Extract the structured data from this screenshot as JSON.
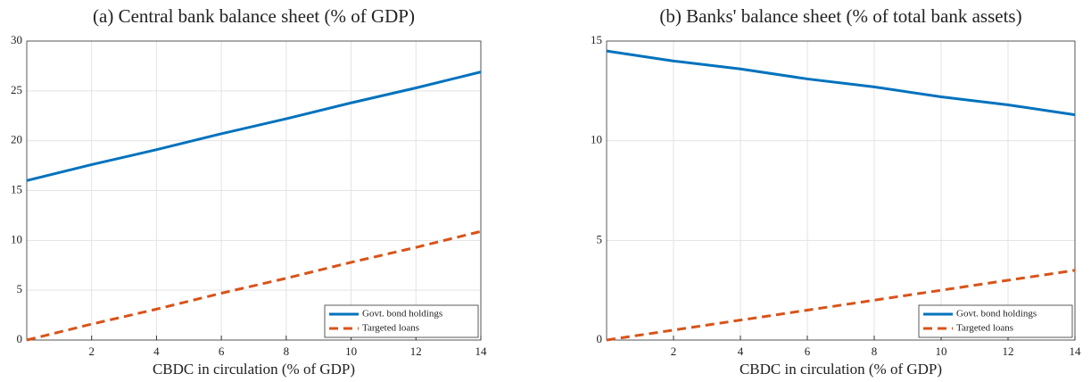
{
  "chart_data": [
    {
      "type": "line",
      "title": "(a) Central bank balance sheet (% of GDP)",
      "x_label": "CBDC in circulation (% of GDP)",
      "x": [
        0,
        2,
        4,
        6,
        8,
        10,
        12,
        14
      ],
      "series": [
        {
          "name": "Govt. bond holdings",
          "color": "#0072bd",
          "dash": false,
          "values": [
            16,
            17.6,
            19.1,
            20.7,
            22.2,
            23.8,
            25.3,
            26.9
          ]
        },
        {
          "name": "Targeted loans",
          "color": "#d95319",
          "dash": true,
          "values": [
            0,
            1.6,
            3.1,
            4.7,
            6.2,
            7.8,
            9.3,
            10.9
          ]
        }
      ],
      "xlim": [
        0,
        14
      ],
      "xticks": [
        2,
        4,
        6,
        8,
        10,
        12,
        14
      ],
      "ylim": [
        0,
        30
      ],
      "yticks": [
        0,
        5,
        10,
        15,
        20,
        25,
        30
      ],
      "grid": true,
      "legend": "lower right"
    },
    {
      "type": "line",
      "title": "(b) Banks' balance sheet (% of total bank assets)",
      "x_label": "CBDC in circulation (% of GDP)",
      "x": [
        0,
        2,
        4,
        6,
        8,
        10,
        12,
        14
      ],
      "series": [
        {
          "name": "Govt. bond holdings",
          "color": "#0072bd",
          "dash": false,
          "values": [
            14.5,
            14.0,
            13.6,
            13.1,
            12.7,
            12.2,
            11.8,
            11.3
          ]
        },
        {
          "name": "Targeted loans",
          "color": "#d95319",
          "dash": true,
          "values": [
            0,
            0.5,
            1,
            1.5,
            2,
            2.5,
            3,
            3.5
          ]
        }
      ],
      "xlim": [
        0,
        14
      ],
      "xticks": [
        2,
        4,
        6,
        8,
        10,
        12,
        14
      ],
      "ylim": [
        0,
        15
      ],
      "yticks": [
        0,
        5,
        10,
        15
      ],
      "grid": true,
      "legend": "lower right"
    }
  ]
}
